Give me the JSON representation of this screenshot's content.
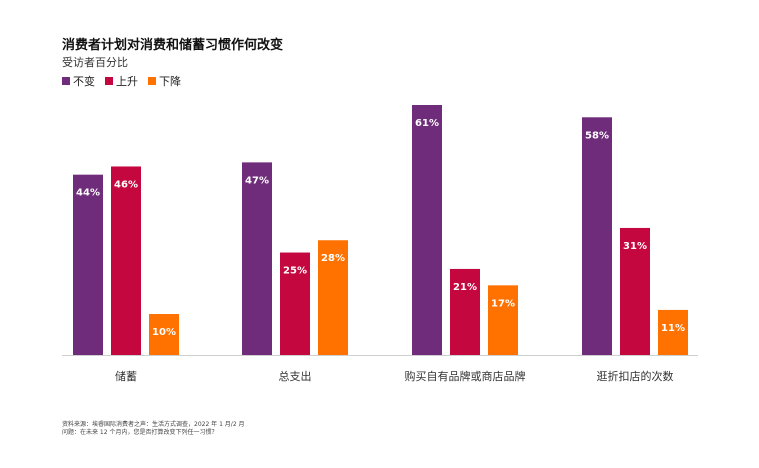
{
  "title": "消费者计划对消费和储蓄习惯作何改变",
  "subtitle": "受访者百分比",
  "footnote": {
    "line1": "资料来源：埃睿国际消费者之声：生活方式调查，2022 年 1 月/2 月",
    "line2": "问题：在未来 12 个月内，您是否打算改变下列任一习惯？"
  },
  "chart_data": {
    "type": "bar",
    "categories": [
      "储蓄",
      "总支出",
      "购买自有品牌或商店品牌",
      "逛折扣店的次数"
    ],
    "series": [
      {
        "name": "不变",
        "values": [
          44,
          47,
          61,
          58
        ],
        "labels": [
          "44%",
          "47%",
          "61%",
          "58%"
        ],
        "color": "#6f2c7a"
      },
      {
        "name": "上升",
        "values": [
          46,
          25,
          21,
          31
        ],
        "labels": [
          "46%",
          "25%",
          "21%",
          "31%"
        ],
        "color": "#c4073f"
      },
      {
        "name": "下降",
        "values": [
          10,
          28,
          17,
          11
        ],
        "labels": [
          "10%",
          "28%",
          "17%",
          "11%"
        ],
        "color": "#ff7200"
      }
    ],
    "ylim": [
      0,
      61
    ],
    "grid": false,
    "legend_position": "top-left",
    "xlabel": "",
    "ylabel": ""
  }
}
